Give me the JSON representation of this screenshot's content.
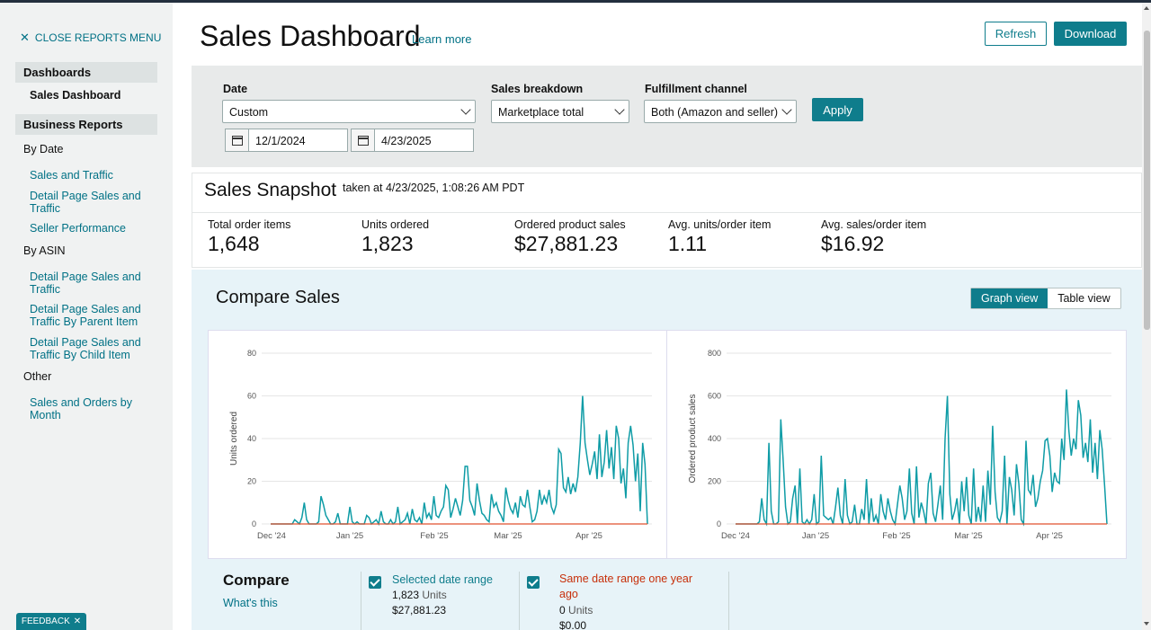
{
  "sidebar": {
    "close_label": "CLOSE REPORTS MENU",
    "dashboards_head": "Dashboards",
    "active_item": "Sales Dashboard",
    "business_head": "Business Reports",
    "by_date": "By Date",
    "by_date_links": [
      "Sales and Traffic",
      "Detail Page Sales and Traffic",
      "Seller Performance"
    ],
    "by_asin": "By ASIN",
    "by_asin_links": [
      "Detail Page Sales and Traffic",
      "Detail Page Sales and Traffic By Parent Item",
      "Detail Page Sales and Traffic By Child Item"
    ],
    "other": "Other",
    "other_links": [
      "Sales and Orders by Month"
    ],
    "feedback": "FEEDBACK"
  },
  "header": {
    "title": "Sales Dashboard",
    "learn_more": "Learn more",
    "refresh": "Refresh",
    "download": "Download"
  },
  "filters": {
    "date_label": "Date",
    "date_value": "Custom",
    "start_date": "12/1/2024",
    "end_date": "4/23/2025",
    "breakdown_label": "Sales breakdown",
    "breakdown_value": "Marketplace total",
    "channel_label": "Fulfillment channel",
    "channel_value": "Both (Amazon and seller)",
    "apply": "Apply"
  },
  "snapshot": {
    "title": "Sales Snapshot",
    "taken": "taken at 4/23/2025, 1:08:26 AM PDT",
    "metrics": [
      {
        "label": "Total order items",
        "value": "1,648"
      },
      {
        "label": "Units ordered",
        "value": "1,823"
      },
      {
        "label": "Ordered product sales",
        "value": "$27,881.23"
      },
      {
        "label": "Avg. units/order item",
        "value": "1.11"
      },
      {
        "label": "Avg. sales/order item",
        "value": "$16.92"
      }
    ]
  },
  "compare_sales": {
    "title": "Compare Sales",
    "graph_view": "Graph view",
    "table_view": "Table view"
  },
  "colors": {
    "teal": "#0f9ca6",
    "red_line": "#e0502d",
    "accent": "#0f7d8c"
  },
  "chart_data": [
    {
      "type": "line",
      "xlabel": "",
      "ylabel": "Units ordered",
      "ylim": [
        0,
        80
      ],
      "yticks": [
        "0",
        "20",
        "40",
        "60",
        "80"
      ],
      "xticks": [
        "Dec '24",
        "Jan '25",
        "Feb '25",
        "Mar '25",
        "Apr '25"
      ],
      "series": [
        {
          "values": [
            0,
            0,
            0,
            0,
            0,
            0,
            0,
            0,
            0,
            0,
            2,
            1,
            0,
            3,
            10,
            2,
            0,
            0,
            0,
            0,
            1,
            13,
            9,
            4,
            2,
            0,
            0,
            1,
            5,
            0,
            0,
            0,
            0,
            8,
            1,
            0,
            1,
            0,
            0,
            0,
            4,
            3,
            0,
            1,
            2,
            0,
            6,
            1,
            0,
            0,
            2,
            0,
            1,
            8,
            0,
            1,
            2,
            5,
            0,
            7,
            2,
            1,
            3,
            0,
            10,
            3,
            5,
            2,
            13,
            4,
            3,
            6,
            8,
            18,
            16,
            3,
            7,
            12,
            8,
            4,
            11,
            27,
            27,
            11,
            8,
            4,
            19,
            11,
            5,
            4,
            2,
            1,
            14,
            8,
            10,
            6,
            4,
            1,
            17,
            11,
            7,
            5,
            10,
            3,
            13,
            9,
            8,
            16,
            8,
            1,
            2,
            6,
            16,
            9,
            13,
            10,
            16,
            8,
            5,
            9,
            35,
            33,
            17,
            15,
            22,
            14,
            19,
            15,
            22,
            38,
            60,
            38,
            30,
            23,
            28,
            34,
            21,
            42,
            22,
            29,
            44,
            26,
            36,
            21,
            46,
            40,
            19,
            26,
            12,
            38,
            46,
            37,
            20,
            33,
            6,
            38,
            28,
            0
          ]
        },
        {
          "values": [
            0
          ]
        }
      ]
    },
    {
      "type": "line",
      "xlabel": "",
      "ylabel": "Ordered product sales",
      "ylim": [
        0,
        800
      ],
      "yticks": [
        "0",
        "200",
        "400",
        "600",
        "800"
      ],
      "xticks": [
        "Dec '24",
        "Jan '25",
        "Feb '25",
        "Mar '25",
        "Apr '25"
      ],
      "series": [
        {
          "values": [
            0,
            0,
            0,
            0,
            0,
            0,
            0,
            0,
            0,
            0,
            10,
            120,
            20,
            0,
            380,
            60,
            0,
            0,
            10,
            490,
            300,
            80,
            0,
            10,
            120,
            180,
            0,
            260,
            10,
            0,
            20,
            0,
            20,
            140,
            0,
            10,
            320,
            40,
            30,
            20,
            30,
            0,
            80,
            170,
            40,
            0,
            210,
            40,
            0,
            10,
            90,
            0,
            0,
            70,
            20,
            210,
            0,
            120,
            10,
            40,
            0,
            140,
            60,
            20,
            120,
            60,
            20,
            0,
            90,
            180,
            120,
            20,
            60,
            260,
            50,
            0,
            270,
            30,
            100,
            60,
            0,
            190,
            240,
            50,
            10,
            90,
            180,
            20,
            400,
            600,
            140,
            20,
            60,
            120,
            0,
            200,
            60,
            220,
            40,
            0,
            260,
            10,
            80,
            10,
            180,
            10,
            250,
            90,
            460,
            150,
            30,
            10,
            60,
            320,
            0,
            220,
            160,
            40,
            280,
            190,
            20,
            0,
            390,
            160,
            140,
            230,
            80,
            120,
            200,
            250,
            390,
            400,
            320,
            150,
            240,
            200,
            190,
            400,
            300,
            630,
            440,
            320,
            400,
            350,
            580,
            510,
            310,
            380,
            290,
            490,
            240,
            380,
            210,
            440,
            350,
            180,
            0
          ]
        },
        {
          "values": [
            0
          ]
        }
      ]
    }
  ],
  "compare": {
    "title": "Compare",
    "whats_this": "What's this",
    "selected_label": "Selected date range",
    "selected_units_num": "1,823",
    "units_word": "Units",
    "selected_sales": "$27,881.23",
    "prior_label": "Same date range one year ago",
    "prior_units_num": "0",
    "prior_sales": "$0.00"
  }
}
